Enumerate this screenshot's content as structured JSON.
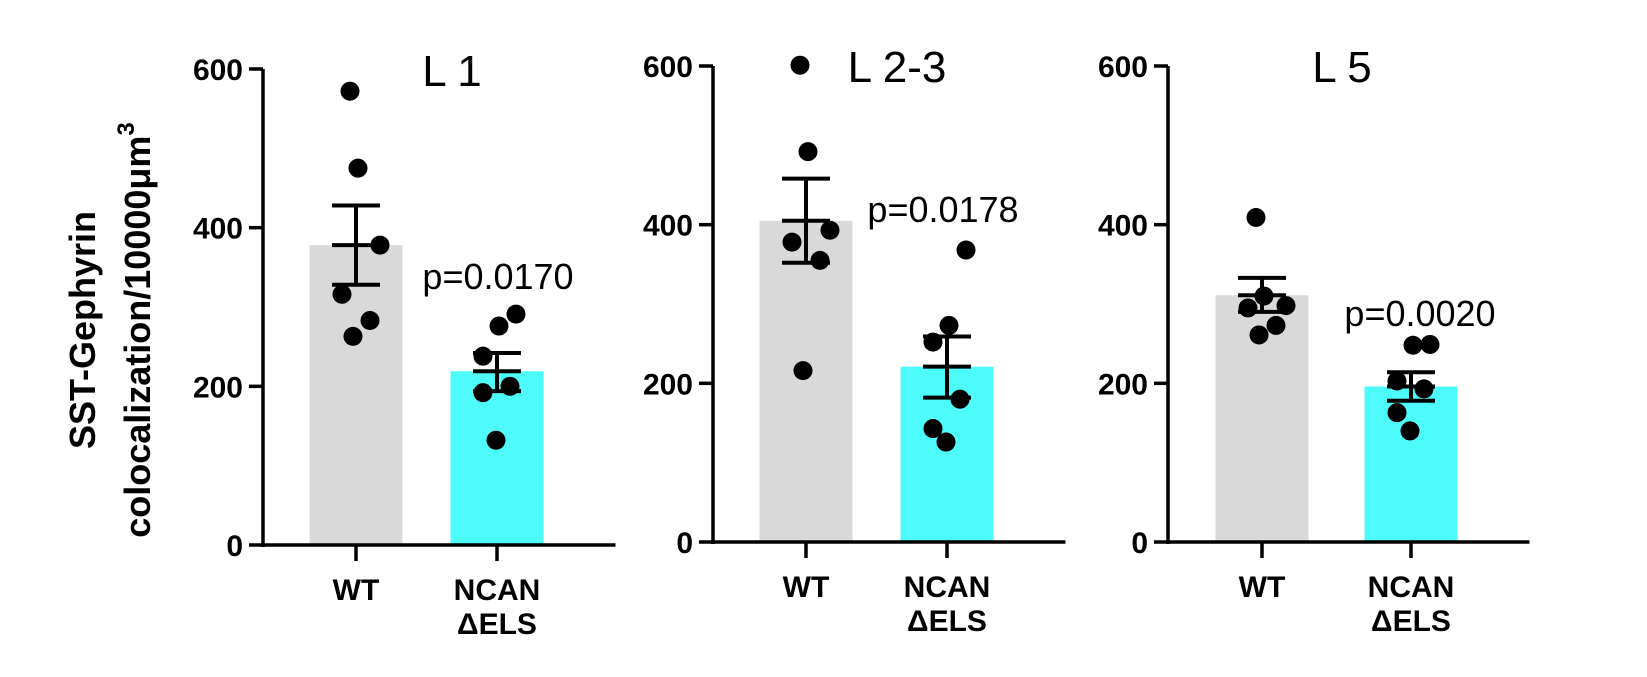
{
  "y_axis_label": {
    "line1": "SST-Gephyrin",
    "line2": "colocalization/10000μm",
    "superscript": "3"
  },
  "chart_data": [
    {
      "type": "bar",
      "title": "L 1",
      "categories": [
        "WT",
        "NCAN\nΔELS"
      ],
      "ylim": [
        0,
        600
      ],
      "yticks": [
        0,
        200,
        400,
        600
      ],
      "bar_colors": [
        "#d9d9d9",
        "#4dfbfb"
      ],
      "means": [
        378,
        219
      ],
      "sem_low": [
        328,
        194
      ],
      "sem_high": [
        428,
        242
      ],
      "points": [
        [
          572,
          475,
          378,
          316,
          283,
          263
        ],
        [
          291,
          276,
          238,
          200,
          192,
          132
        ]
      ],
      "annotation": "p=0.0170"
    },
    {
      "type": "bar",
      "title": "L 2-3",
      "categories": [
        "WT",
        "NCAN\nΔELS"
      ],
      "ylim": [
        0,
        600
      ],
      "yticks": [
        0,
        200,
        400,
        600
      ],
      "bar_colors": [
        "#d9d9d9",
        "#4dfbfb"
      ],
      "means": [
        405,
        221
      ],
      "sem_low": [
        352,
        182
      ],
      "sem_high": [
        458,
        259
      ],
      "points": [
        [
          601,
          492,
          393,
          378,
          355,
          216
        ],
        [
          368,
          273,
          252,
          180,
          143,
          126
        ]
      ],
      "annotation": "p=0.0178"
    },
    {
      "type": "bar",
      "title": "L 5",
      "categories": [
        "WT",
        "NCAN\nΔELS"
      ],
      "ylim": [
        0,
        600
      ],
      "yticks": [
        0,
        200,
        400,
        600
      ],
      "bar_colors": [
        "#d9d9d9",
        "#4dfbfb"
      ],
      "means": [
        311,
        196
      ],
      "sem_low": [
        290,
        178
      ],
      "sem_high": [
        333,
        214
      ],
      "points": [
        [
          409,
          310,
          298,
          295,
          273,
          261
        ],
        [
          249,
          248,
          203,
          193,
          163,
          140
        ]
      ],
      "annotation": "p=0.0020"
    }
  ]
}
